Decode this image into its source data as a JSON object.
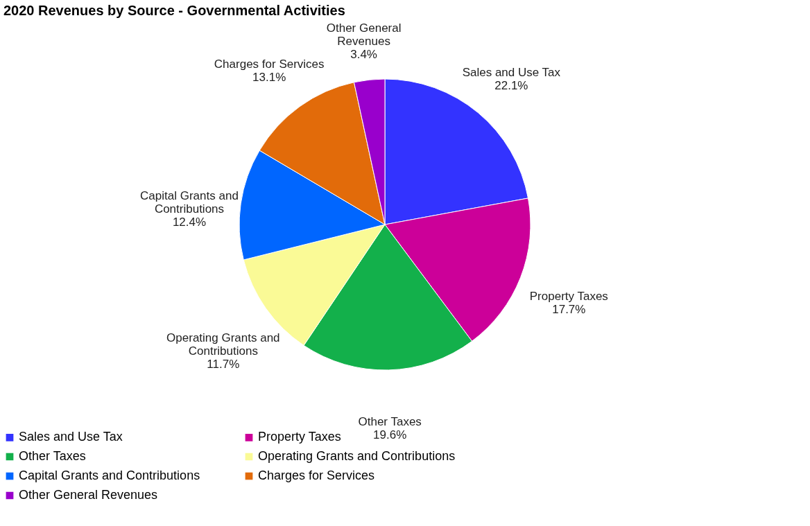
{
  "chart_data": {
    "type": "pie",
    "title": "2020 Revenues by Source - Governmental Activities",
    "categories": [
      "Sales and Use Tax",
      "Property Taxes",
      "Other Taxes",
      "Operating Grants and Contributions",
      "Capital Grants and Contributions",
      "Charges for Services",
      "Other General Revenues"
    ],
    "values": [
      22.1,
      17.7,
      19.6,
      11.7,
      12.4,
      13.1,
      3.4
    ],
    "value_labels": [
      "22.1%",
      "17.7%",
      "19.6%",
      "11.7%",
      "12.4%",
      "13.1%",
      "3.4%"
    ],
    "colors": [
      "#3333ff",
      "#cc0099",
      "#13b04b",
      "#fafa96",
      "#0066ff",
      "#e26b0a",
      "#9900cc"
    ],
    "legend": "bottom"
  }
}
